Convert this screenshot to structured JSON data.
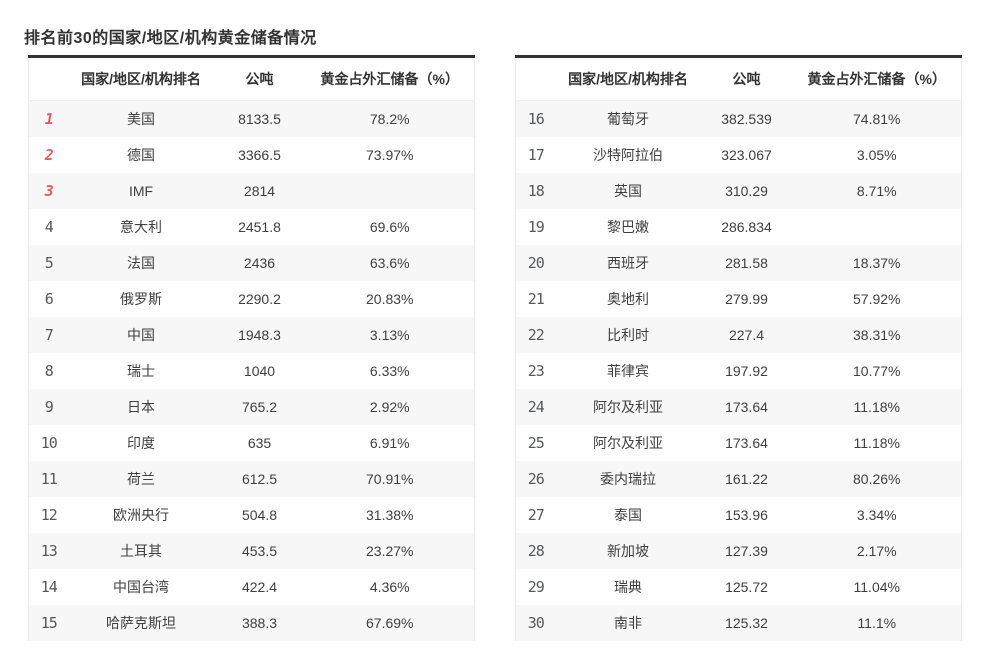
{
  "title": "排名前30的国家/地区/机构黄金储备情况",
  "header": {
    "rank": "",
    "name": "国家/地区/机构排名",
    "tons": "公吨",
    "pct": "黄金占外汇储备（%）"
  },
  "colors": {
    "accent_red": "#ec5a5f",
    "rank_gray": "#54585a",
    "stripe": "#f7f7f7",
    "top_border": "#323232",
    "text": "#3f3f3f"
  },
  "chart_data": {
    "type": "table",
    "title": "排名前30的国家/地区/机构黄金储备情况",
    "columns": [
      "排名",
      "国家/地区/机构排名",
      "公吨",
      "黄金占外汇储备（%）"
    ],
    "tables": [
      {
        "rows": [
          {
            "rank": "1",
            "name": "美国",
            "tons": "8133.5",
            "pct": "78.2%"
          },
          {
            "rank": "2",
            "name": "德国",
            "tons": "3366.5",
            "pct": "73.97%"
          },
          {
            "rank": "3",
            "name": "IMF",
            "tons": "2814",
            "pct": ""
          },
          {
            "rank": "4",
            "name": "意大利",
            "tons": "2451.8",
            "pct": "69.6%"
          },
          {
            "rank": "5",
            "name": "法国",
            "tons": "2436",
            "pct": "63.6%"
          },
          {
            "rank": "6",
            "name": "俄罗斯",
            "tons": "2290.2",
            "pct": "20.83%"
          },
          {
            "rank": "7",
            "name": "中国",
            "tons": "1948.3",
            "pct": "3.13%"
          },
          {
            "rank": "8",
            "name": "瑞士",
            "tons": "1040",
            "pct": "6.33%"
          },
          {
            "rank": "9",
            "name": "日本",
            "tons": "765.2",
            "pct": "2.92%"
          },
          {
            "rank": "10",
            "name": "印度",
            "tons": "635",
            "pct": "6.91%"
          },
          {
            "rank": "11",
            "name": "荷兰",
            "tons": "612.5",
            "pct": "70.91%"
          },
          {
            "rank": "12",
            "name": "欧洲央行",
            "tons": "504.8",
            "pct": "31.38%"
          },
          {
            "rank": "13",
            "name": "土耳其",
            "tons": "453.5",
            "pct": "23.27%"
          },
          {
            "rank": "14",
            "name": "中国台湾",
            "tons": "422.4",
            "pct": "4.36%"
          },
          {
            "rank": "15",
            "name": "哈萨克斯坦",
            "tons": "388.3",
            "pct": "67.69%"
          }
        ]
      },
      {
        "rows": [
          {
            "rank": "16",
            "name": "葡萄牙",
            "tons": "382.539",
            "pct": "74.81%"
          },
          {
            "rank": "17",
            "name": "沙特阿拉伯",
            "tons": "323.067",
            "pct": "3.05%"
          },
          {
            "rank": "18",
            "name": "英国",
            "tons": "310.29",
            "pct": "8.71%"
          },
          {
            "rank": "19",
            "name": "黎巴嫩",
            "tons": "286.834",
            "pct": ""
          },
          {
            "rank": "20",
            "name": "西班牙",
            "tons": "281.58",
            "pct": "18.37%"
          },
          {
            "rank": "21",
            "name": "奥地利",
            "tons": "279.99",
            "pct": "57.92%"
          },
          {
            "rank": "22",
            "name": "比利时",
            "tons": "227.4",
            "pct": "38.31%"
          },
          {
            "rank": "23",
            "name": "菲律宾",
            "tons": "197.92",
            "pct": "10.77%"
          },
          {
            "rank": "24",
            "name": "阿尔及利亚",
            "tons": "173.64",
            "pct": "11.18%"
          },
          {
            "rank": "25",
            "name": "阿尔及利亚",
            "tons": "173.64",
            "pct": "11.18%"
          },
          {
            "rank": "26",
            "name": "委内瑞拉",
            "tons": "161.22",
            "pct": "80.26%"
          },
          {
            "rank": "27",
            "name": "泰国",
            "tons": "153.96",
            "pct": "3.34%"
          },
          {
            "rank": "28",
            "name": "新加坡",
            "tons": "127.39",
            "pct": "2.17%"
          },
          {
            "rank": "29",
            "name": "瑞典",
            "tons": "125.72",
            "pct": "11.04%"
          },
          {
            "rank": "30",
            "name": "南非",
            "tons": "125.32",
            "pct": "11.1%"
          }
        ]
      }
    ]
  }
}
